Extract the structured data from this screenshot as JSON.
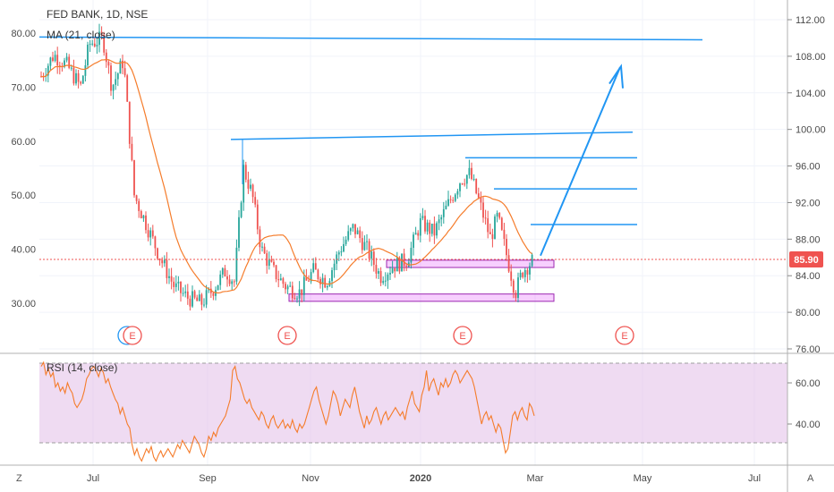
{
  "header": {
    "title": "FED BANK, 1D, NSE",
    "ma_legend": "MA (21, close)",
    "rsi_legend": "RSI (14, close)"
  },
  "corner": {
    "left": "Z",
    "right": "A"
  },
  "price_badge": "85.90",
  "earnings_marker": "E",
  "colors": {
    "up": "#26a69a",
    "down": "#ef5350",
    "ma": "#f57c2b",
    "trend": "#2196f3",
    "support": "#e040fb",
    "rsi_band": "#e1bee7",
    "badge": "#ef5350"
  },
  "chart_data": [
    {
      "type": "candlestick",
      "title": "FED BANK, 1D, NSE",
      "left_axis_ticks": [
        "80.00",
        "70.00",
        "60.00",
        "50.00",
        "40.00",
        "30.00"
      ],
      "left_ylim": [
        25.5,
        84
      ],
      "right_axis_ticks": [
        "112.00",
        "108.00",
        "104.00",
        "100.00",
        "96.00",
        "92.00",
        "88.00",
        "84.00",
        "80.00",
        "76.00"
      ],
      "right_ylim": [
        75.5,
        114.5
      ],
      "x_tick_labels": [
        "Jul",
        "Sep",
        "Nov",
        "2020",
        "Mar",
        "May",
        "Jul"
      ],
      "last_price": 85.9,
      "series": [
        {
          "name": "MA (21, close)",
          "kind": "moving-average"
        }
      ],
      "support_zones": [
        {
          "from": 84.9,
          "to": 85.7,
          "start": "Dec",
          "end": "Mar"
        },
        {
          "from": 81.2,
          "to": 82.0,
          "start": "Oct",
          "end": "Mar"
        }
      ],
      "trendlines": [
        {
          "from": [
            38.5,
            0
          ],
          "to": [
            112.0,
            0
          ]
        },
        {
          "level": "Sep swing high ≈ 99.5"
        },
        {
          "level": "≈ 96.9"
        },
        {
          "level": "≈ 93.5"
        },
        {
          "level": "≈ 89.6"
        },
        {
          "arrow": "up",
          "target": "≈ 106.5"
        }
      ]
    },
    {
      "type": "line",
      "title": "RSI (14, close)",
      "y_axis_ticks": [
        "60.00",
        "40.00"
      ],
      "ylim": [
        21.5,
        73.5
      ],
      "bands": [
        30,
        70
      ],
      "values": [
        68,
        70,
        64,
        67,
        63,
        65,
        58,
        60,
        56,
        58,
        55,
        60,
        57,
        55,
        50,
        48,
        50,
        52,
        56,
        62,
        64,
        67,
        68,
        66,
        63,
        67,
        65,
        60,
        62,
        58,
        55,
        52,
        50,
        45,
        48,
        44,
        40,
        38,
        30,
        25,
        28,
        24,
        22,
        25,
        28,
        26,
        29,
        24,
        22,
        25,
        27,
        24,
        26,
        28,
        26,
        24,
        27,
        30,
        28,
        32,
        30,
        28,
        26,
        30,
        34,
        32,
        30,
        26,
        24,
        28,
        34,
        32,
        36,
        34,
        38,
        40,
        42,
        44,
        48,
        52,
        66,
        68,
        62,
        60,
        56,
        52,
        50,
        52,
        48,
        46,
        44,
        42,
        46,
        44,
        40,
        38,
        42,
        44,
        40,
        38,
        40,
        42,
        38,
        40,
        38,
        42,
        38,
        36,
        40,
        38,
        40,
        44,
        48,
        52,
        56,
        58,
        52,
        48,
        44,
        40,
        44,
        50,
        56,
        54,
        50,
        44,
        48,
        52,
        50,
        48,
        54,
        58,
        52,
        46,
        42,
        38,
        44,
        40,
        42,
        46,
        48,
        44,
        40,
        44,
        46,
        42,
        44,
        46,
        48,
        46,
        44,
        46,
        42,
        48,
        52,
        56,
        50,
        48,
        46,
        54,
        58,
        66,
        56,
        60,
        62,
        58,
        54,
        60,
        58,
        62,
        58,
        60,
        64,
        66,
        64,
        60,
        62,
        64,
        66,
        64,
        62,
        58,
        52,
        46,
        40,
        44,
        46,
        42,
        44,
        40,
        36,
        40,
        38,
        32,
        26,
        28,
        36,
        44,
        46,
        42,
        46,
        48,
        44,
        42,
        50,
        48,
        44
      ]
    }
  ]
}
